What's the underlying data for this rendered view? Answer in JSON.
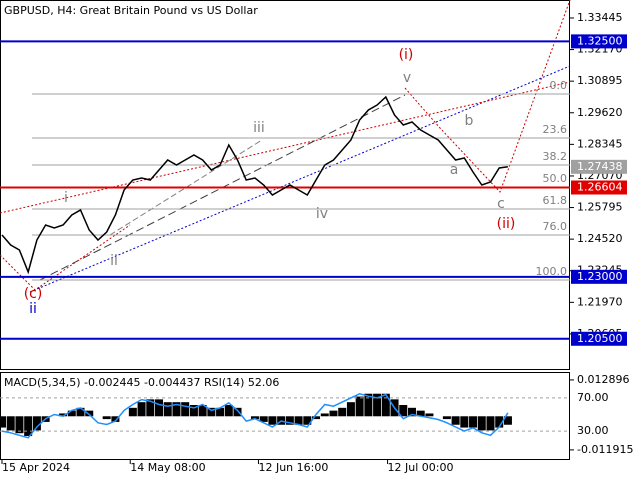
{
  "chart_data": {
    "type": "line",
    "title": "GBPUSD, H4:  Great Britain Pound vs US Dollar",
    "indicator_label": "MACD(5,34,5) -0.002445 -0.004437 RSI(14) 52.06",
    "color": "#000000",
    "values": [
      1.24687,
      1.24284,
      1.24082,
      1.23195,
      1.24485,
      1.2509,
      1.2497,
      1.2509,
      1.25494,
      1.25696,
      1.24889,
      1.24485,
      1.24808,
      1.25494,
      1.26503,
      1.26907,
      1.26988,
      1.26907,
      1.2731,
      1.27714,
      1.27512,
      1.27714,
      1.27916,
      1.27714,
      1.2731,
      1.27512,
      1.28319,
      1.27714,
      1.26907,
      1.26988,
      1.26705,
      1.26302,
      1.26503,
      1.26705,
      1.26503,
      1.26302,
      1.26907,
      1.27512,
      1.27714,
      1.28117,
      1.28521,
      1.29328,
      1.29731,
      1.29933,
      1.30256,
      1.2953,
      1.29126,
      1.29247,
      1.28924,
      1.28723,
      1.28521,
      1.28117,
      1.27714,
      1.27795,
      1.2723,
      1.26705,
      1.26826,
      1.27391,
      1.27438
    ],
    "xlim": [
      0,
      65
    ],
    "xticks": [
      {
        "value": 0,
        "label": "15 Apr 2024"
      },
      {
        "value": 14.7,
        "label": "14 May 08:00"
      },
      {
        "value": 29.4,
        "label": "12 Jun 16:00"
      },
      {
        "value": 44.2,
        "label": "12 Jul 00:00"
      }
    ],
    "ylim": [
      1.1924,
      1.3417
    ],
    "yticks": [
      1.33445,
      {
        "value": 1.3217,
        "label": "1.32170"
      },
      1.30895,
      {
        "value": 1.2962,
        "label": "1.29620"
      },
      1.28345,
      {
        "value": 1.2707,
        "label": "1.27070"
      },
      1.25795,
      {
        "value": 1.2452,
        "label": "1.24520"
      },
      1.23245,
      {
        "value": 1.2197,
        "label": "1.21970"
      },
      1.20695
    ],
    "levels": [
      {
        "value": 1.325,
        "label": "1.32500",
        "color": "#0000cc"
      },
      {
        "value": 1.27438,
        "label": "1.27438",
        "color": "#a0a0a0"
      },
      {
        "value": 1.26604,
        "label": "1.26604",
        "color": "#e00000"
      },
      {
        "value": 1.23,
        "label": "1.23000",
        "color": "#0000cc"
      },
      {
        "value": 1.205,
        "label": "1.20500",
        "color": "#0000cc"
      }
    ],
    "fibonacci": {
      "labels": [
        "0.0",
        "23.6",
        "38.2",
        "50.0",
        "61.8",
        "76.0",
        "100.0"
      ],
      "prices": [
        1.30377,
        1.28601,
        1.27511,
        1.26624,
        1.25736,
        1.24687,
        1.22871
      ]
    },
    "waves": [
      {
        "label": "(i)",
        "color": "#cc0000"
      },
      {
        "label": "v",
        "color": "#808080"
      },
      {
        "label": "b",
        "color": "#808080"
      },
      {
        "label": "a",
        "color": "#808080"
      },
      {
        "label": "c",
        "color": "#808080"
      },
      {
        "label": "(ii)",
        "color": "#cc0000"
      },
      {
        "label": "iii",
        "color": "#808080"
      },
      {
        "label": "iv",
        "color": "#808080"
      },
      {
        "label": "ii",
        "color": "#808080"
      },
      {
        "label": "i",
        "color": "#808080"
      },
      {
        "label": "(c)",
        "color": "#cc0000"
      },
      {
        "label": "ii",
        "color": "#0000cc"
      }
    ],
    "macd": {
      "values": [
        -0.004,
        -0.005,
        -0.006,
        -0.007,
        -0.005,
        -0.002,
        0,
        0.001,
        0.002,
        0.003,
        0.002,
        0,
        -0.001,
        -0.002,
        0,
        0.003,
        0.005,
        0.006,
        0.006,
        0.005,
        0.005,
        0.005,
        0.004,
        0.004,
        0.003,
        0.003,
        0.004,
        0.003,
        0,
        -0.001,
        -0.002,
        -0.003,
        -0.003,
        -0.003,
        -0.003,
        -0.003,
        -0.001,
        0.001,
        0.002,
        0.003,
        0.005,
        0.007,
        0.008,
        0.008,
        0.008,
        0.006,
        0.004,
        0.003,
        0.002,
        0.001,
        0,
        -0.001,
        -0.003,
        -0.004,
        -0.004,
        -0.005,
        -0.005,
        -0.004,
        -0.003
      ],
      "ylim": [
        -0.0155,
        0.0157
      ],
      "yticks": [
        0.012896,
        -0.011915
      ],
      "color": "#000000"
    },
    "rsi": {
      "values": [
        30,
        28,
        25,
        22,
        35,
        45,
        50,
        48,
        55,
        58,
        50,
        40,
        38,
        42,
        55,
        62,
        68,
        66,
        62,
        60,
        62,
        60,
        58,
        62,
        55,
        58,
        64,
        55,
        42,
        45,
        40,
        35,
        42,
        40,
        38,
        35,
        50,
        62,
        60,
        65,
        70,
        75,
        72,
        70,
        74,
        58,
        45,
        50,
        48,
        46,
        44,
        40,
        35,
        30,
        34,
        28,
        25,
        35,
        52
      ],
      "ylim": [
        -4.8,
        101.2
      ],
      "yticks": [
        {
          "value": 70,
          "label": "70.00"
        },
        {
          "value": 30,
          "label": "30.00"
        }
      ],
      "color": "#1e90ff"
    }
  }
}
